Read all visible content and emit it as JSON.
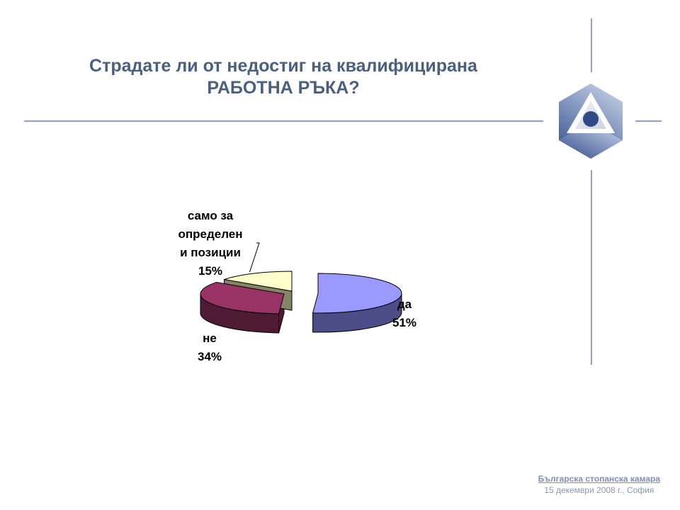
{
  "slide": {
    "title_line1": "Страдате ли от недостиг на квалифицирана",
    "title_line2": "РАБОТНА РЪКА?"
  },
  "footer": {
    "org": "Българска стопанска камара",
    "date": "15 декември 2008 г., София"
  },
  "colors": {
    "title": "#4a6080",
    "rule": "#8ea0cf"
  },
  "chart_data": {
    "type": "pie",
    "title": "",
    "series": [
      {
        "label_lines": [
          "да",
          "51%"
        ],
        "value": 51,
        "top_color": "#9999ff",
        "side_color": "#4c4c88"
      },
      {
        "label_lines": [
          "не",
          "34%"
        ],
        "value": 34,
        "top_color": "#993366",
        "side_color": "#4f1a34"
      },
      {
        "label_lines": [
          "само за",
          "определен",
          "и позиции",
          "15%"
        ],
        "value": 15,
        "top_color": "#ffffcc",
        "side_color": "#858566"
      }
    ]
  }
}
